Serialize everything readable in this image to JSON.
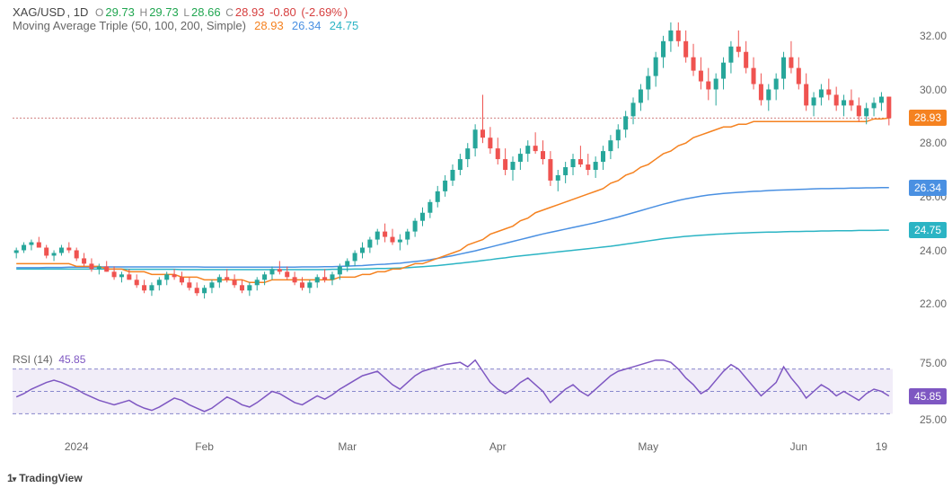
{
  "symbol": "XAG/USD",
  "interval": "1D",
  "ohlc": {
    "O": "29.73",
    "H": "29.73",
    "L": "28.66",
    "C": "28.93",
    "change": "-0.80",
    "change_pct": "-2.69%"
  },
  "indicator_ma": {
    "label": "Moving Average Triple (50, 100, 200, Simple)",
    "ma50": "28.93",
    "ma100": "26.34",
    "ma200": "24.75"
  },
  "indicator_rsi": {
    "label": "RSI (14)",
    "value": "45.85"
  },
  "branding": "TradingView",
  "main_chart": {
    "type": "candlestick",
    "ylim": [
      21.0,
      33.0
    ],
    "yticks": [
      22.0,
      24.0,
      26.0,
      28.0,
      30.0,
      32.0
    ],
    "price_line": 28.93,
    "tags": [
      {
        "value": "28.93",
        "y": 28.93,
        "color": "#f58220"
      },
      {
        "value": "26.34",
        "y": 26.34,
        "color": "#4a90e2"
      },
      {
        "value": "24.75",
        "y": 24.75,
        "color": "#2bb4c4"
      }
    ],
    "colors": {
      "up": "#26a69a",
      "down": "#ef5350",
      "ma50": "#f58220",
      "ma100": "#4a90e2",
      "ma200": "#2bb4c4",
      "priceline": "#d08080"
    },
    "x_labels": [
      {
        "label": "2024",
        "x": 8
      },
      {
        "label": "Feb",
        "x": 25
      },
      {
        "label": "Mar",
        "x": 44
      },
      {
        "label": "Apr",
        "x": 64
      },
      {
        "label": "May",
        "x": 84
      },
      {
        "label": "Jun",
        "x": 104
      },
      {
        "label": "19",
        "x": 115
      }
    ],
    "n_candles": 117,
    "candles": [
      [
        23.9,
        24.1,
        23.7,
        24.0
      ],
      [
        24.0,
        24.3,
        23.9,
        24.2
      ],
      [
        24.2,
        24.4,
        24.0,
        24.3
      ],
      [
        24.3,
        24.5,
        24.1,
        24.1
      ],
      [
        24.1,
        24.2,
        23.7,
        23.8
      ],
      [
        23.8,
        24.0,
        23.6,
        23.9
      ],
      [
        23.9,
        24.2,
        23.8,
        24.1
      ],
      [
        24.1,
        24.3,
        23.9,
        24.0
      ],
      [
        24.0,
        24.1,
        23.6,
        23.7
      ],
      [
        23.7,
        23.9,
        23.4,
        23.5
      ],
      [
        23.5,
        23.7,
        23.2,
        23.3
      ],
      [
        23.3,
        23.5,
        23.1,
        23.4
      ],
      [
        23.4,
        23.6,
        23.2,
        23.2
      ],
      [
        23.2,
        23.4,
        22.9,
        23.0
      ],
      [
        23.0,
        23.2,
        22.8,
        23.1
      ],
      [
        23.1,
        23.3,
        22.9,
        22.9
      ],
      [
        22.9,
        23.1,
        22.6,
        22.7
      ],
      [
        22.7,
        22.9,
        22.4,
        22.5
      ],
      [
        22.5,
        22.8,
        22.3,
        22.7
      ],
      [
        22.7,
        23.0,
        22.5,
        22.9
      ],
      [
        22.9,
        23.2,
        22.7,
        23.1
      ],
      [
        23.1,
        23.3,
        22.9,
        23.0
      ],
      [
        23.0,
        23.2,
        22.7,
        22.8
      ],
      [
        22.8,
        23.0,
        22.5,
        22.6
      ],
      [
        22.6,
        22.8,
        22.3,
        22.4
      ],
      [
        22.4,
        22.7,
        22.2,
        22.6
      ],
      [
        22.6,
        22.9,
        22.4,
        22.8
      ],
      [
        22.8,
        23.1,
        22.6,
        23.0
      ],
      [
        23.0,
        23.3,
        22.8,
        22.9
      ],
      [
        22.9,
        23.1,
        22.6,
        22.7
      ],
      [
        22.7,
        22.9,
        22.4,
        22.5
      ],
      [
        22.5,
        22.8,
        22.3,
        22.7
      ],
      [
        22.7,
        23.0,
        22.5,
        22.9
      ],
      [
        22.9,
        23.2,
        22.7,
        23.1
      ],
      [
        23.1,
        23.4,
        22.9,
        23.3
      ],
      [
        23.3,
        23.6,
        23.1,
        23.2
      ],
      [
        23.2,
        23.4,
        22.9,
        23.0
      ],
      [
        23.0,
        23.2,
        22.7,
        22.8
      ],
      [
        22.8,
        23.0,
        22.5,
        22.6
      ],
      [
        22.6,
        22.9,
        22.4,
        22.8
      ],
      [
        22.8,
        23.1,
        22.6,
        23.0
      ],
      [
        23.0,
        23.3,
        22.8,
        22.9
      ],
      [
        22.9,
        23.2,
        22.7,
        23.1
      ],
      [
        23.1,
        23.5,
        22.9,
        23.4
      ],
      [
        23.4,
        23.7,
        23.2,
        23.6
      ],
      [
        23.6,
        24.0,
        23.4,
        23.9
      ],
      [
        23.9,
        24.3,
        23.7,
        24.1
      ],
      [
        24.1,
        24.5,
        23.9,
        24.4
      ],
      [
        24.4,
        24.8,
        24.2,
        24.7
      ],
      [
        24.7,
        25.0,
        24.3,
        24.5
      ],
      [
        24.5,
        24.8,
        24.2,
        24.3
      ],
      [
        24.3,
        24.6,
        24.0,
        24.4
      ],
      [
        24.4,
        24.8,
        24.2,
        24.7
      ],
      [
        24.7,
        25.2,
        24.5,
        25.1
      ],
      [
        25.1,
        25.6,
        24.9,
        25.4
      ],
      [
        25.4,
        25.9,
        25.2,
        25.8
      ],
      [
        25.8,
        26.4,
        25.6,
        26.2
      ],
      [
        26.2,
        26.8,
        26.0,
        26.6
      ],
      [
        26.6,
        27.2,
        26.4,
        27.0
      ],
      [
        27.0,
        27.6,
        26.8,
        27.4
      ],
      [
        27.4,
        28.0,
        27.1,
        27.8
      ],
      [
        27.8,
        28.7,
        27.5,
        28.5
      ],
      [
        28.5,
        29.8,
        28.0,
        28.2
      ],
      [
        28.2,
        28.6,
        27.6,
        27.8
      ],
      [
        27.8,
        28.2,
        27.2,
        27.4
      ],
      [
        27.4,
        27.8,
        26.8,
        27.0
      ],
      [
        27.0,
        27.5,
        26.6,
        27.3
      ],
      [
        27.3,
        27.8,
        27.0,
        27.6
      ],
      [
        27.6,
        28.1,
        27.3,
        27.9
      ],
      [
        27.9,
        28.4,
        27.6,
        27.7
      ],
      [
        27.7,
        28.1,
        27.2,
        27.4
      ],
      [
        27.4,
        27.7,
        26.4,
        26.6
      ],
      [
        26.6,
        27.0,
        26.2,
        26.8
      ],
      [
        26.8,
        27.3,
        26.5,
        27.1
      ],
      [
        27.1,
        27.6,
        26.8,
        27.4
      ],
      [
        27.4,
        27.9,
        27.1,
        27.2
      ],
      [
        27.2,
        27.6,
        26.8,
        27.0
      ],
      [
        27.0,
        27.5,
        26.7,
        27.3
      ],
      [
        27.3,
        27.9,
        27.0,
        27.7
      ],
      [
        27.7,
        28.3,
        27.4,
        28.1
      ],
      [
        28.1,
        28.7,
        27.8,
        28.5
      ],
      [
        28.5,
        29.2,
        28.2,
        29.0
      ],
      [
        29.0,
        29.7,
        28.7,
        29.5
      ],
      [
        29.5,
        30.2,
        29.2,
        30.0
      ],
      [
        30.0,
        30.8,
        29.6,
        30.5
      ],
      [
        30.5,
        31.4,
        30.1,
        31.2
      ],
      [
        31.2,
        32.0,
        30.8,
        31.8
      ],
      [
        31.8,
        32.5,
        31.4,
        32.2
      ],
      [
        32.2,
        32.5,
        31.6,
        31.8
      ],
      [
        31.8,
        32.2,
        31.0,
        31.2
      ],
      [
        31.2,
        31.7,
        30.5,
        30.7
      ],
      [
        30.7,
        31.2,
        30.0,
        30.3
      ],
      [
        30.3,
        30.8,
        29.6,
        30.0
      ],
      [
        30.0,
        30.6,
        29.4,
        30.4
      ],
      [
        30.4,
        31.2,
        30.0,
        31.0
      ],
      [
        31.0,
        31.8,
        30.6,
        31.6
      ],
      [
        31.6,
        32.2,
        31.2,
        31.4
      ],
      [
        31.4,
        31.8,
        30.6,
        30.8
      ],
      [
        30.8,
        31.2,
        30.0,
        30.2
      ],
      [
        30.2,
        30.6,
        29.4,
        29.6
      ],
      [
        29.6,
        30.2,
        29.2,
        30.0
      ],
      [
        30.0,
        30.6,
        29.6,
        30.4
      ],
      [
        30.4,
        31.4,
        30.0,
        31.2
      ],
      [
        31.2,
        31.8,
        30.6,
        30.8
      ],
      [
        30.8,
        31.2,
        30.0,
        30.2
      ],
      [
        30.2,
        30.6,
        29.2,
        29.4
      ],
      [
        29.4,
        29.9,
        29.0,
        29.7
      ],
      [
        29.7,
        30.2,
        29.4,
        30.0
      ],
      [
        30.0,
        30.4,
        29.6,
        29.8
      ],
      [
        29.8,
        30.1,
        29.2,
        29.4
      ],
      [
        29.4,
        29.8,
        29.0,
        29.6
      ],
      [
        29.6,
        30.0,
        29.2,
        29.4
      ],
      [
        29.4,
        29.7,
        28.8,
        29.0
      ],
      [
        29.0,
        29.5,
        28.7,
        29.3
      ],
      [
        29.3,
        29.7,
        29.0,
        29.5
      ],
      [
        29.5,
        29.9,
        29.2,
        29.73
      ],
      [
        29.73,
        29.73,
        28.66,
        28.93
      ]
    ],
    "ma50": [
      23.5,
      23.5,
      23.5,
      23.5,
      23.5,
      23.5,
      23.5,
      23.5,
      23.4,
      23.4,
      23.4,
      23.4,
      23.3,
      23.3,
      23.3,
      23.2,
      23.2,
      23.2,
      23.1,
      23.1,
      23.1,
      23.1,
      23.0,
      23.0,
      23.0,
      22.9,
      22.9,
      22.9,
      22.9,
      22.9,
      22.9,
      22.8,
      22.8,
      22.8,
      22.9,
      22.9,
      22.9,
      22.9,
      22.9,
      22.9,
      22.9,
      22.9,
      22.9,
      23.0,
      23.0,
      23.0,
      23.1,
      23.1,
      23.2,
      23.2,
      23.3,
      23.3,
      23.4,
      23.5,
      23.5,
      23.6,
      23.7,
      23.8,
      23.9,
      24.0,
      24.2,
      24.3,
      24.4,
      24.6,
      24.7,
      24.8,
      24.9,
      25.1,
      25.2,
      25.4,
      25.5,
      25.6,
      25.7,
      25.8,
      25.9,
      26.0,
      26.1,
      26.2,
      26.3,
      26.5,
      26.6,
      26.8,
      26.9,
      27.1,
      27.2,
      27.4,
      27.6,
      27.7,
      27.9,
      28.0,
      28.2,
      28.3,
      28.4,
      28.5,
      28.6,
      28.6,
      28.7,
      28.7,
      28.8,
      28.8,
      28.8,
      28.8,
      28.8,
      28.8,
      28.8,
      28.8,
      28.8,
      28.8,
      28.8,
      28.8,
      28.8,
      28.8,
      28.8,
      28.8,
      28.9,
      28.9,
      28.93
    ],
    "ma100": [
      23.35,
      23.35,
      23.35,
      23.35,
      23.36,
      23.36,
      23.36,
      23.37,
      23.37,
      23.37,
      23.37,
      23.38,
      23.38,
      23.38,
      23.38,
      23.38,
      23.38,
      23.38,
      23.38,
      23.38,
      23.38,
      23.38,
      23.38,
      23.38,
      23.38,
      23.37,
      23.37,
      23.37,
      23.37,
      23.37,
      23.37,
      23.37,
      23.37,
      23.37,
      23.37,
      23.37,
      23.37,
      23.37,
      23.38,
      23.38,
      23.38,
      23.39,
      23.39,
      23.4,
      23.41,
      23.42,
      23.43,
      23.45,
      23.47,
      23.48,
      23.5,
      23.52,
      23.55,
      23.58,
      23.61,
      23.65,
      23.7,
      23.75,
      23.8,
      23.86,
      23.92,
      23.98,
      24.05,
      24.12,
      24.19,
      24.26,
      24.33,
      24.4,
      24.47,
      24.54,
      24.61,
      24.67,
      24.73,
      24.79,
      24.85,
      24.91,
      24.97,
      25.03,
      25.1,
      25.17,
      25.24,
      25.32,
      25.4,
      25.48,
      25.56,
      25.64,
      25.72,
      25.79,
      25.86,
      25.92,
      25.97,
      26.02,
      26.06,
      26.09,
      26.12,
      26.14,
      26.16,
      26.18,
      26.2,
      26.21,
      26.23,
      26.24,
      26.25,
      26.26,
      26.27,
      26.28,
      26.29,
      26.3,
      26.3,
      26.31,
      26.31,
      26.32,
      26.32,
      26.33,
      26.33,
      26.34,
      26.34
    ],
    "ma200": [
      23.3,
      23.3,
      23.3,
      23.3,
      23.3,
      23.3,
      23.3,
      23.3,
      23.3,
      23.3,
      23.3,
      23.3,
      23.3,
      23.3,
      23.3,
      23.29,
      23.29,
      23.29,
      23.29,
      23.29,
      23.29,
      23.29,
      23.28,
      23.28,
      23.28,
      23.28,
      23.28,
      23.28,
      23.28,
      23.28,
      23.28,
      23.28,
      23.28,
      23.28,
      23.28,
      23.28,
      23.28,
      23.28,
      23.28,
      23.28,
      23.28,
      23.28,
      23.29,
      23.29,
      23.29,
      23.3,
      23.3,
      23.31,
      23.32,
      23.32,
      23.33,
      23.34,
      23.35,
      23.37,
      23.39,
      23.41,
      23.43,
      23.46,
      23.49,
      23.52,
      23.55,
      23.58,
      23.62,
      23.65,
      23.69,
      23.72,
      23.76,
      23.79,
      23.82,
      23.85,
      23.88,
      23.91,
      23.94,
      23.97,
      24.0,
      24.03,
      24.06,
      24.09,
      24.12,
      24.15,
      24.19,
      24.23,
      24.27,
      24.31,
      24.35,
      24.39,
      24.43,
      24.46,
      24.49,
      24.52,
      24.54,
      24.56,
      24.58,
      24.6,
      24.61,
      24.63,
      24.64,
      24.65,
      24.66,
      24.67,
      24.68,
      24.68,
      24.69,
      24.7,
      24.7,
      24.71,
      24.71,
      24.72,
      24.72,
      24.73,
      24.73,
      24.73,
      24.74,
      24.74,
      24.74,
      24.75,
      24.75
    ]
  },
  "rsi_chart": {
    "ylim": [
      15,
      85
    ],
    "yticks": [
      25.0,
      75.0
    ],
    "bands": [
      30,
      50,
      70
    ],
    "current": 45.85,
    "colors": {
      "line": "#7e57c2",
      "fill": "#f1edf8",
      "band": "#8888cc"
    },
    "data": [
      45,
      48,
      52,
      55,
      58,
      60,
      58,
      55,
      52,
      48,
      45,
      42,
      40,
      38,
      40,
      42,
      38,
      35,
      33,
      36,
      40,
      44,
      42,
      38,
      35,
      32,
      35,
      40,
      45,
      42,
      38,
      36,
      40,
      45,
      50,
      48,
      44,
      40,
      38,
      42,
      46,
      43,
      47,
      52,
      56,
      60,
      64,
      66,
      68,
      62,
      56,
      52,
      58,
      64,
      68,
      70,
      72,
      74,
      75,
      76,
      72,
      78,
      68,
      58,
      52,
      48,
      52,
      58,
      62,
      56,
      50,
      40,
      46,
      52,
      56,
      50,
      46,
      52,
      58,
      64,
      68,
      70,
      72,
      74,
      76,
      78,
      78,
      76,
      70,
      62,
      56,
      48,
      52,
      60,
      68,
      74,
      70,
      62,
      54,
      46,
      52,
      58,
      72,
      62,
      54,
      44,
      50,
      56,
      52,
      46,
      50,
      46,
      42,
      48,
      52,
      50,
      45.85
    ]
  }
}
